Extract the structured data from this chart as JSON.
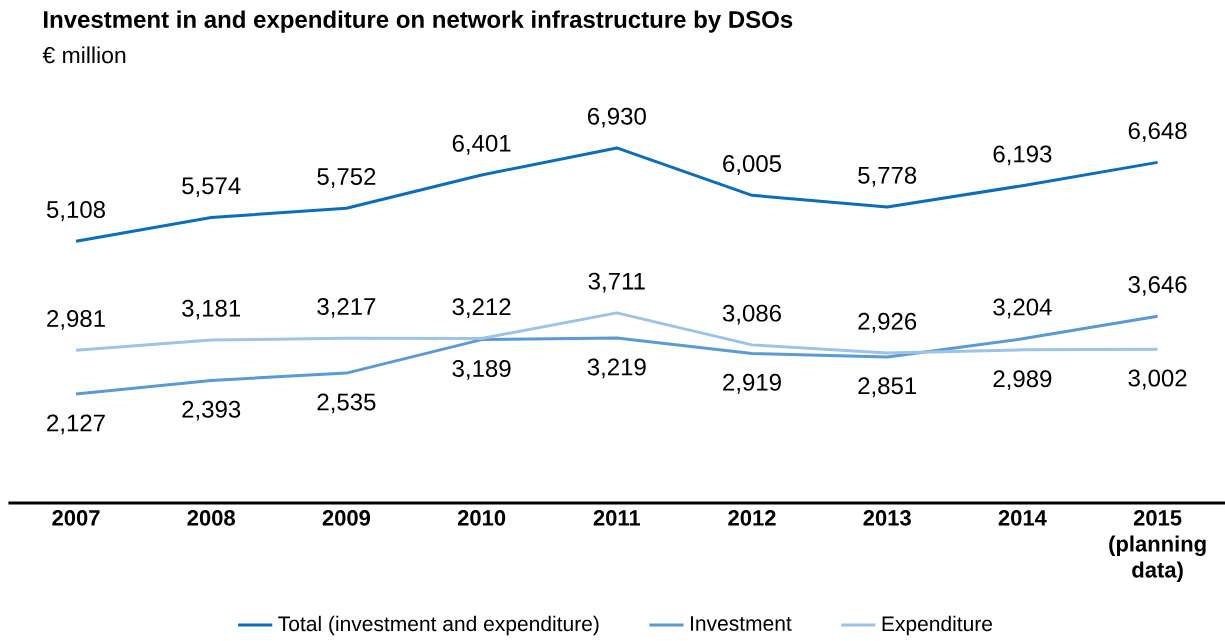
{
  "chart_data": {
    "type": "line",
    "title": "Investment in and expenditure on network infrastructure by DSOs",
    "subtitle": "€ million",
    "categories": [
      "2007",
      "2008",
      "2009",
      "2010",
      "2011",
      "2012",
      "2013",
      "2014",
      "2015 (planning data)"
    ],
    "series": [
      {
        "name": "Total (investment and expenditure)",
        "color": "#0a6ebd",
        "values": [
          5108,
          5574,
          5752,
          6401,
          6930,
          6005,
          5778,
          6193,
          6648
        ],
        "value_labels": [
          "5,108",
          "5,574",
          "5,752",
          "6,401",
          "6,930",
          "6,005",
          "5,778",
          "6,193",
          "6,648"
        ]
      },
      {
        "name": "Investment",
        "color": "#5b9bd5",
        "values": [
          2127,
          2393,
          2535,
          3189,
          3219,
          2919,
          2851,
          3204,
          3646
        ],
        "value_labels": [
          "2,127",
          "2,393",
          "2,535",
          "3,189",
          "3,219",
          "2,919",
          "2,851",
          "3,204",
          "3,646"
        ]
      },
      {
        "name": "Expenditure",
        "color": "#9dc3e6",
        "values": [
          2981,
          3181,
          3217,
          3212,
          3711,
          3086,
          2926,
          2989,
          3002
        ],
        "value_labels": [
          "2,981",
          "3,181",
          "3,217",
          "3,212",
          "3,711",
          "3,086",
          "2,926",
          "2,989",
          "3,002"
        ]
      }
    ],
    "tick_labels": "x",
    "grid": false,
    "legend": "bottom",
    "marker": "none",
    "line_style": "solid"
  }
}
